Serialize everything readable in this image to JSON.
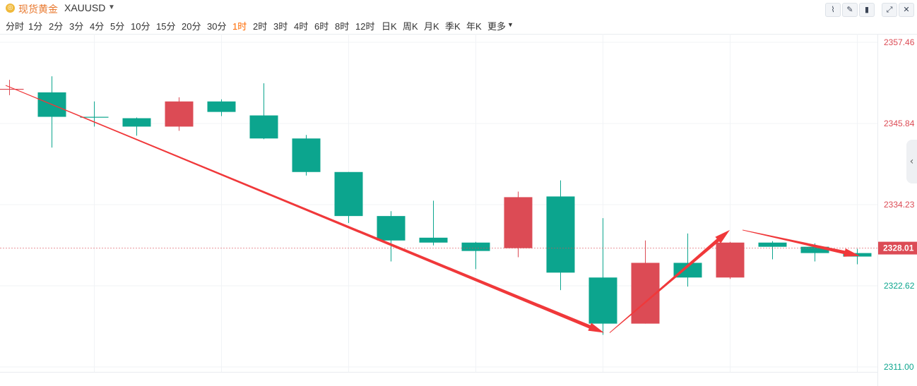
{
  "header": {
    "logo_icon": "gold-coin-icon",
    "title": "现货黄金",
    "symbol": "XAUUSD",
    "tools": [
      {
        "name": "line-chart-icon",
        "glyph": "⌇"
      },
      {
        "name": "draw-pen-icon",
        "glyph": "✎"
      },
      {
        "name": "candlestick-icon",
        "glyph": "▮"
      },
      {
        "name": "expand-icon",
        "glyph": "⤢"
      },
      {
        "name": "close-icon",
        "glyph": "✕"
      }
    ]
  },
  "periods": [
    "分时",
    "1分",
    "2分",
    "3分",
    "4分",
    "5分",
    "10分",
    "15分",
    "20分",
    "30分",
    "1时",
    "2时",
    "3时",
    "4时",
    "6时",
    "8时",
    "12时",
    "日K",
    "周K",
    "月K",
    "季K",
    "年K",
    "更多"
  ],
  "active_period": "1时",
  "colors": {
    "up": "#dc4b55",
    "down": "#0ca58e",
    "arrow": "#f0383a",
    "current": "#dc4b55"
  },
  "chart_data": {
    "type": "candlestick",
    "ylim": [
      2311.0,
      2357.46
    ],
    "y_ticks": [
      "2357.46",
      "2345.84",
      "2334.23",
      "2322.62",
      "2311.00"
    ],
    "current_price": "2328.01",
    "candles": [
      {
        "o": 2350.8,
        "c": 2350.8,
        "h": 2352.1,
        "l": 2349.9
      },
      {
        "o": 2350.3,
        "c": 2346.8,
        "h": 2352.6,
        "l": 2342.4
      },
      {
        "o": 2346.8,
        "c": 2346.7,
        "h": 2349.0,
        "l": 2345.4
      },
      {
        "o": 2346.6,
        "c": 2345.4,
        "h": 2346.7,
        "l": 2344.1
      },
      {
        "o": 2345.4,
        "c": 2349.0,
        "h": 2349.6,
        "l": 2344.8
      },
      {
        "o": 2349.0,
        "c": 2347.5,
        "h": 2349.3,
        "l": 2346.9
      },
      {
        "o": 2347.0,
        "c": 2343.7,
        "h": 2351.6,
        "l": 2343.6
      },
      {
        "o": 2343.7,
        "c": 2338.9,
        "h": 2344.2,
        "l": 2338.4
      },
      {
        "o": 2338.9,
        "c": 2332.6,
        "h": 2338.9,
        "l": 2331.6
      },
      {
        "o": 2332.6,
        "c": 2329.1,
        "h": 2333.3,
        "l": 2326.1
      },
      {
        "o": 2329.5,
        "c": 2328.8,
        "h": 2334.8,
        "l": 2328.4
      },
      {
        "o": 2328.8,
        "c": 2327.6,
        "h": 2328.9,
        "l": 2325.0
      },
      {
        "o": 2328.0,
        "c": 2335.3,
        "h": 2336.1,
        "l": 2326.7
      },
      {
        "o": 2335.4,
        "c": 2324.5,
        "h": 2337.7,
        "l": 2322.0
      },
      {
        "o": 2323.8,
        "c": 2317.2,
        "h": 2332.3,
        "l": 2315.6
      },
      {
        "o": 2317.2,
        "c": 2325.9,
        "h": 2329.1,
        "l": 2317.2
      },
      {
        "o": 2325.9,
        "c": 2323.8,
        "h": 2330.1,
        "l": 2322.5
      },
      {
        "o": 2323.8,
        "c": 2328.8,
        "h": 2328.9,
        "l": 2323.6
      },
      {
        "o": 2328.8,
        "c": 2328.2,
        "h": 2329.0,
        "l": 2326.4
      },
      {
        "o": 2328.2,
        "c": 2327.3,
        "h": 2328.7,
        "l": 2326.1
      },
      {
        "o": 2327.3,
        "c": 2326.8,
        "h": 2327.9,
        "l": 2325.7
      }
    ],
    "annotations": [
      {
        "type": "arrow",
        "from": [
          0,
          2351.3
        ],
        "to": [
          14,
          2315.9
        ]
      },
      {
        "type": "arrow",
        "from": [
          14,
          2315.9
        ],
        "to": [
          17,
          2330.6
        ]
      },
      {
        "type": "arrow",
        "from": [
          17,
          2330.6
        ],
        "to": [
          20,
          2326.9
        ]
      }
    ]
  }
}
